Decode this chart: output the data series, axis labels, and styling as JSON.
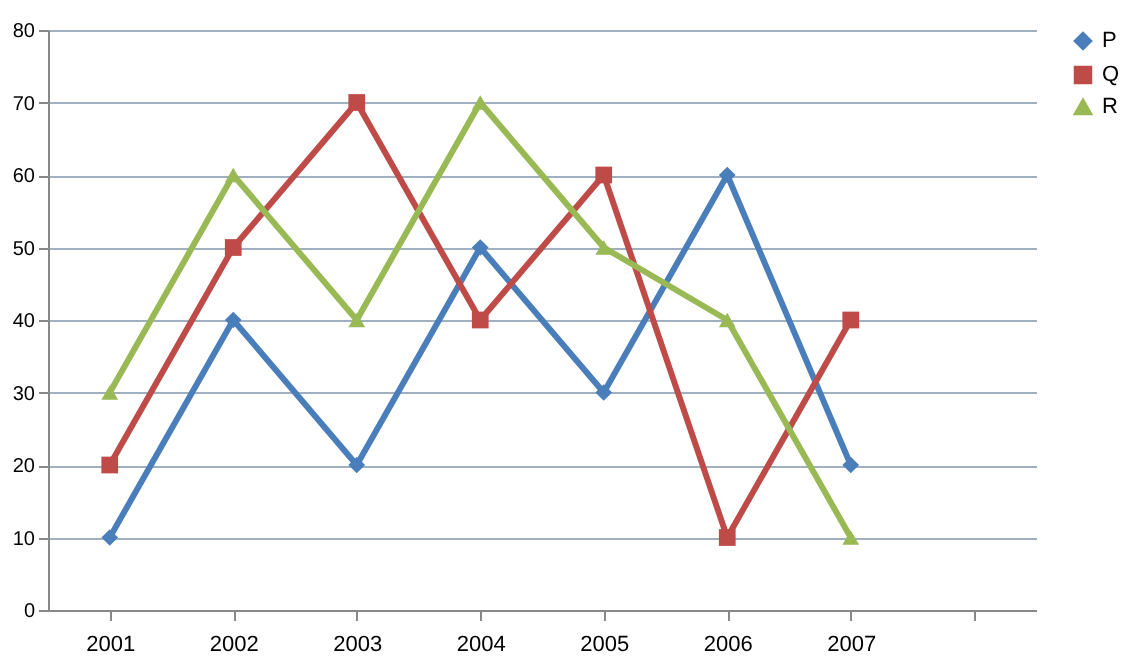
{
  "chart_data": {
    "type": "line",
    "categories": [
      "2001",
      "2002",
      "2003",
      "2004",
      "2005",
      "2006",
      "2007",
      null
    ],
    "series": [
      {
        "name": "P",
        "color": "#4a7ebb",
        "marker": "diamond",
        "values": [
          10,
          40,
          20,
          50,
          30,
          60,
          20,
          null
        ]
      },
      {
        "name": "Q",
        "color": "#be4b48",
        "marker": "square",
        "values": [
          20,
          50,
          70,
          40,
          60,
          10,
          40,
          null
        ]
      },
      {
        "name": "R",
        "color": "#98b954",
        "marker": "triangle",
        "values": [
          30,
          60,
          40,
          70,
          50,
          40,
          10,
          null
        ]
      }
    ],
    "ylim": [
      0,
      80
    ],
    "yticks": [
      0,
      10,
      20,
      30,
      40,
      50,
      60,
      70,
      80
    ],
    "grid": "y",
    "legend": "right",
    "line_style": "solid"
  }
}
